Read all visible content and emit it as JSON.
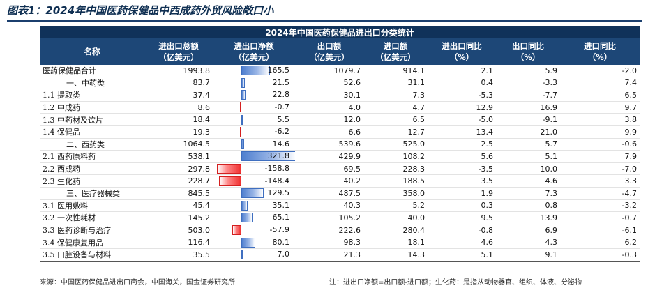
{
  "figure_title": "图表1：2024年中国医药保健品中西成药外贸风险敞口小",
  "table_caption": "2024年中国医药保健品进出口分类统计",
  "columns": [
    {
      "l1": "名称",
      "l2": ""
    },
    {
      "l1": "进出口总额",
      "l2": "（亿美元）"
    },
    {
      "l1": "进出口净额",
      "l2": "（亿美元）"
    },
    {
      "l1": "出口额",
      "l2": "（亿美元）"
    },
    {
      "l1": "进口额",
      "l2": "（亿美元）"
    },
    {
      "l1": "进出口同比",
      "l2": "（%）"
    },
    {
      "l1": "出口同比",
      "l2": "（%）"
    },
    {
      "l1": "进口同比",
      "l2": "（%）"
    }
  ],
  "rows": [
    {
      "name": "医药保健品合计",
      "cat": false,
      "total": "1993.8",
      "net": "165.5",
      "net_value": 165.5,
      "exp": "1079.7",
      "imp": "914.1",
      "yoy": "2.1",
      "exp_yoy": "5.9",
      "imp_yoy": "-2.0"
    },
    {
      "name": "一、中药类",
      "cat": true,
      "total": "83.7",
      "net": "21.5",
      "net_value": 21.5,
      "exp": "52.6",
      "imp": "31.1",
      "yoy": "0.4",
      "exp_yoy": "-3.3",
      "imp_yoy": "7.4"
    },
    {
      "name": "1.1 提取类",
      "cat": false,
      "total": "37.4",
      "net": "22.8",
      "net_value": 22.8,
      "exp": "30.1",
      "imp": "7.3",
      "yoy": "-5.3",
      "exp_yoy": "-7.7",
      "imp_yoy": "6.5"
    },
    {
      "name": "1.2 中成药",
      "cat": false,
      "total": "8.6",
      "net": "-0.7",
      "net_value": -0.7,
      "exp": "4.0",
      "imp": "4.7",
      "yoy": "12.9",
      "exp_yoy": "16.9",
      "imp_yoy": "9.7"
    },
    {
      "name": "1.3 中药材及饮片",
      "cat": false,
      "total": "18.4",
      "net": "5.5",
      "net_value": 5.5,
      "exp": "12.0",
      "imp": "6.5",
      "yoy": "-5.0",
      "exp_yoy": "-9.1",
      "imp_yoy": "3.8"
    },
    {
      "name": "1.4 保健品",
      "cat": false,
      "total": "19.3",
      "net": "-6.2",
      "net_value": -6.2,
      "exp": "6.6",
      "imp": "12.7",
      "yoy": "13.4",
      "exp_yoy": "21.0",
      "imp_yoy": "9.9"
    },
    {
      "name": "二、西药类",
      "cat": true,
      "total": "1064.5",
      "net": "14.6",
      "net_value": 14.6,
      "exp": "539.6",
      "imp": "525.0",
      "yoy": "2.5",
      "exp_yoy": "5.7",
      "imp_yoy": "-0.6"
    },
    {
      "name": "2.1 西药原料药",
      "cat": false,
      "total": "538.1",
      "net": "321.8",
      "net_value": 321.8,
      "exp": "429.9",
      "imp": "108.2",
      "yoy": "5.6",
      "exp_yoy": "5.1",
      "imp_yoy": "7.9"
    },
    {
      "name": "2.2 西成药",
      "cat": false,
      "total": "297.8",
      "net": "-158.8",
      "net_value": -158.8,
      "exp": "69.5",
      "imp": "228.3",
      "yoy": "-3.5",
      "exp_yoy": "10.0",
      "imp_yoy": "-7.0"
    },
    {
      "name": "2.3 生化药",
      "cat": false,
      "total": "228.7",
      "net": "-148.4",
      "net_value": -148.4,
      "exp": "40.2",
      "imp": "188.5",
      "yoy": "3.5",
      "exp_yoy": "4.6",
      "imp_yoy": "3.3"
    },
    {
      "name": "三、医疗器械类",
      "cat": true,
      "total": "845.5",
      "net": "129.5",
      "net_value": 129.5,
      "exp": "487.5",
      "imp": "358.0",
      "yoy": "1.9",
      "exp_yoy": "7.3",
      "imp_yoy": "-4.7"
    },
    {
      "name": "3.1 医用敷料",
      "cat": false,
      "total": "45.4",
      "net": "35.1",
      "net_value": 35.1,
      "exp": "40.3",
      "imp": "5.2",
      "yoy": "0.3",
      "exp_yoy": "0.8",
      "imp_yoy": "-3.2"
    },
    {
      "name": "3.2 一次性耗材",
      "cat": false,
      "total": "145.2",
      "net": "65.1",
      "net_value": 65.1,
      "exp": "105.2",
      "imp": "40.0",
      "yoy": "9.5",
      "exp_yoy": "13.9",
      "imp_yoy": "-0.7"
    },
    {
      "name": "3.3 医药诊断与治疗",
      "cat": false,
      "total": "503.0",
      "net": "-57.9",
      "net_value": -57.9,
      "exp": "222.6",
      "imp": "280.4",
      "yoy": "-0.8",
      "exp_yoy": "6.9",
      "imp_yoy": "-6.1"
    },
    {
      "name": "3.4 保健康复用品",
      "cat": false,
      "total": "116.4",
      "net": "80.1",
      "net_value": 80.1,
      "exp": "98.3",
      "imp": "18.1",
      "yoy": "4.6",
      "exp_yoy": "4.3",
      "imp_yoy": "6.2"
    },
    {
      "name": "3.5 口腔设备与材料",
      "cat": false,
      "total": "35.5",
      "net": "7.0",
      "net_value": 7.0,
      "exp": "21.3",
      "imp": "14.3",
      "yoy": "5.1",
      "exp_yoy": "9.1",
      "imp_yoy": "-0.3"
    }
  ],
  "source": "来源：中国医药保健品进出口商会，中国海关，国金证券研究所",
  "note": "注：进出口净额=出口额-进口额；生化药：是指从动物器官、组织、体液、分泌物",
  "colors": {
    "title": "#0f2f52",
    "caption_bg": "#10325a",
    "header_bg": "#1d4777",
    "pos_bar": "#4f7fcf",
    "neg_bar": "#f03030"
  }
}
